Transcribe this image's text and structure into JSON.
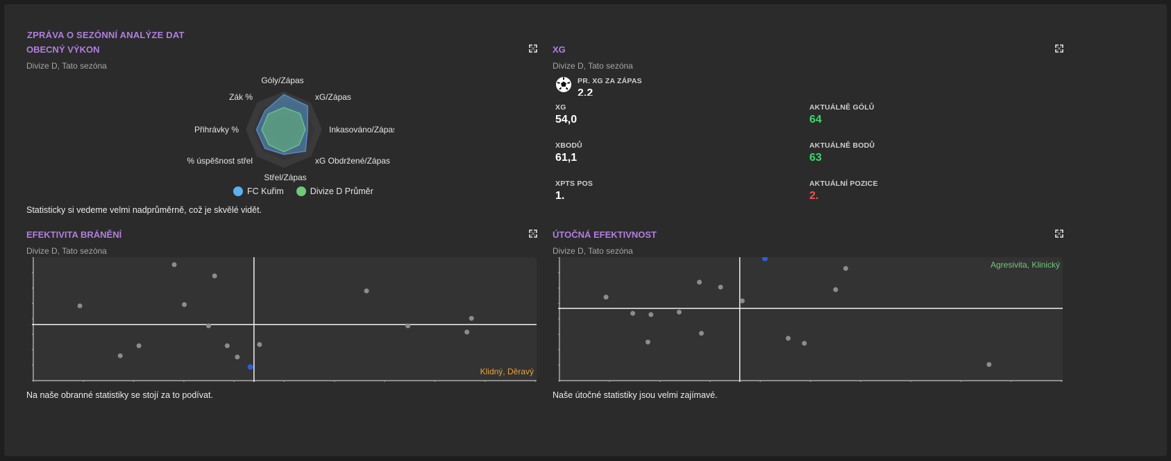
{
  "report": {
    "title": "ZPRÁVA O SEZÓNNÍ ANALÝZE DAT"
  },
  "colors": {
    "accent_title": "#b27ee0",
    "team": "#5ab0f0",
    "division": "#6fc97a",
    "highlight_point": "#2b5fd9",
    "point": "#8c8c8c",
    "positive": "#39d86a",
    "negative": "#f05454",
    "quadrant_defence": "#e8a33b",
    "quadrant_attack": "#6fc97a"
  },
  "general": {
    "title": "OBECNÝ VÝKON",
    "subtitle": "Divize D, Tato sezóna",
    "comment": "Statisticky si vedeme velmi nadprůměrně, což je skvělé vidět.",
    "radar_labels": [
      "Góly/Zápas",
      "xG/Zápas",
      "Inkasováno/Zápas",
      "xG Obdržené/Zápas",
      "Střel/Zápas",
      "% úspěšnost střel",
      "Přihrávky %",
      "Zák %"
    ],
    "legend": [
      {
        "name": "FC Kuřim",
        "icon": "legend-dot-blue"
      },
      {
        "name": "Divize D Průměr",
        "icon": "legend-dot-green"
      }
    ]
  },
  "xg": {
    "title": "XG",
    "subtitle": "Divize D, Tato sezóna",
    "avg_label": "PR. XG ZA ZÁPAS",
    "avg_value": "2,2",
    "icon": "football-icon",
    "stats": [
      {
        "label": "XG",
        "value": "54,0"
      },
      {
        "label": "AKTUÁLNĚ GÓLŮ",
        "value": "64"
      },
      {
        "label": "XBODŮ",
        "value": "61,1"
      },
      {
        "label": "AKTUÁLNĚ BODŮ",
        "value": "63"
      },
      {
        "label": "XPTS POS",
        "value": "1."
      },
      {
        "label": "AKTUÁLNÍ POZICE",
        "value": "2."
      }
    ]
  },
  "defence": {
    "title": "EFEKTIVITA BRÁNĚNÍ",
    "subtitle": "Divize D, Tato sezóna",
    "quadrant_label": "Klidný, Děravý",
    "comment": "Na naše obranné statistiky se stojí za to podívat."
  },
  "attack": {
    "title": "ÚTOČNÁ EFEKTIVNOST",
    "subtitle": "Divize D, Tato sezóna",
    "quadrant_label": "Agresivita, Klinický",
    "comment": "Naše útočné statistiky jsou velmi zajímavé."
  },
  "chart_data": [
    {
      "type": "radar",
      "title": "OBECNÝ VÝKON",
      "axes": [
        "Góly/Zápas",
        "xG/Zápas",
        "Inkasováno/Zápas",
        "xG Obdržené/Zápas",
        "Střel/Zápas",
        "% úspěšnost střel",
        "Přihrávky %",
        "Zák %"
      ],
      "series": [
        {
          "name": "FC Kuřim",
          "values": [
            0.92,
            0.88,
            0.62,
            0.8,
            0.65,
            0.7,
            0.72,
            0.7
          ]
        },
        {
          "name": "Divize D Průměr",
          "values": [
            0.58,
            0.6,
            0.56,
            0.56,
            0.58,
            0.56,
            0.58,
            0.58
          ]
        }
      ],
      "range": [
        0,
        1
      ],
      "legend": "bottom"
    },
    {
      "type": "scatter",
      "title": "EFEKTIVITA BRÁNĚNÍ",
      "xlim": [
        0,
        1
      ],
      "ylim": [
        0,
        1
      ],
      "reference_x": 0.44,
      "reference_y": 0.46,
      "quadrant_label": "Klidný, Děravý",
      "points": [
        {
          "x": 0.095,
          "y": 0.61,
          "team": false
        },
        {
          "x": 0.175,
          "y": 0.21,
          "team": false
        },
        {
          "x": 0.212,
          "y": 0.29,
          "team": false
        },
        {
          "x": 0.282,
          "y": 0.94,
          "team": false
        },
        {
          "x": 0.302,
          "y": 0.62,
          "team": false
        },
        {
          "x": 0.35,
          "y": 0.45,
          "team": false
        },
        {
          "x": 0.362,
          "y": 0.85,
          "team": false
        },
        {
          "x": 0.387,
          "y": 0.29,
          "team": false
        },
        {
          "x": 0.407,
          "y": 0.2,
          "team": false
        },
        {
          "x": 0.433,
          "y": 0.12,
          "team": true
        },
        {
          "x": 0.451,
          "y": 0.3,
          "team": false
        },
        {
          "x": 0.663,
          "y": 0.73,
          "team": false
        },
        {
          "x": 0.745,
          "y": 0.45,
          "team": false
        },
        {
          "x": 0.862,
          "y": 0.4,
          "team": false
        },
        {
          "x": 0.871,
          "y": 0.51,
          "team": false
        }
      ]
    },
    {
      "type": "scatter",
      "title": "ÚTOČNÁ EFEKTIVNOST",
      "xlim": [
        0,
        1
      ],
      "ylim": [
        0,
        1
      ],
      "reference_x": 0.36,
      "reference_y": 0.59,
      "quadrant_label": "Agresivita, Klinický",
      "points": [
        {
          "x": 0.095,
          "y": 0.68,
          "team": false
        },
        {
          "x": 0.148,
          "y": 0.55,
          "team": false
        },
        {
          "x": 0.178,
          "y": 0.32,
          "team": false
        },
        {
          "x": 0.184,
          "y": 0.54,
          "team": false
        },
        {
          "x": 0.24,
          "y": 0.56,
          "team": false
        },
        {
          "x": 0.28,
          "y": 0.8,
          "team": false
        },
        {
          "x": 0.284,
          "y": 0.39,
          "team": false
        },
        {
          "x": 0.322,
          "y": 0.76,
          "team": false
        },
        {
          "x": 0.365,
          "y": 0.65,
          "team": false
        },
        {
          "x": 0.41,
          "y": 0.99,
          "team": true
        },
        {
          "x": 0.456,
          "y": 0.35,
          "team": false
        },
        {
          "x": 0.488,
          "y": 0.31,
          "team": false
        },
        {
          "x": 0.55,
          "y": 0.74,
          "team": false
        },
        {
          "x": 0.57,
          "y": 0.91,
          "team": false
        },
        {
          "x": 0.854,
          "y": 0.14,
          "team": false
        }
      ]
    }
  ]
}
